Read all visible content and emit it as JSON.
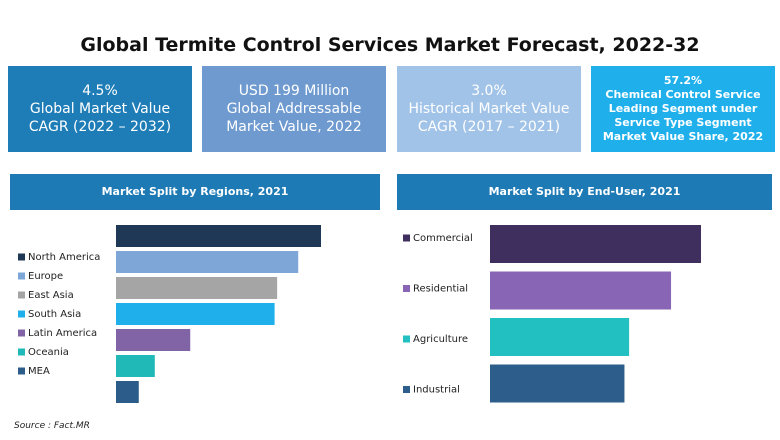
{
  "title": "Global Termite Control Services Market Forecast, 2022-32",
  "stats": [
    {
      "value": "4.5%",
      "label": "Global Market Value CAGR (2022 – 2032)"
    },
    {
      "value": "USD 199 Million",
      "label": "Global Addressable Market Value, 2022"
    },
    {
      "value": "3.0%",
      "label": "Historical Market Value CAGR (2017 – 2021)"
    },
    {
      "value": "57.2%",
      "label": "Chemical Control Service Leading Segment under Service Type Segment Market Value Share, 2022"
    }
  ],
  "chart_data": [
    {
      "type": "bar",
      "orientation": "horizontal",
      "title": "Market Split by Regions, 2021",
      "categories": [
        "North America",
        "Europe",
        "East Asia",
        "South Asia",
        "Latin America",
        "Oceania",
        "MEA"
      ],
      "values": [
        24.3,
        21.6,
        19.1,
        18.8,
        8.8,
        4.6,
        2.7
      ],
      "colors": [
        "#1e3856",
        "#7ea7d8",
        "#a5a5a5",
        "#1fb0ec",
        "#8064a6",
        "#21b8b8",
        "#2c5c8a"
      ]
    },
    {
      "type": "bar",
      "orientation": "horizontal",
      "title": "Market Split by End-User, 2021",
      "categories": [
        "Commercial",
        "Residential",
        "Agriculture",
        "Industrial"
      ],
      "values": [
        31.7,
        27.2,
        20.9,
        20.2
      ],
      "colors": [
        "#3f2f5f",
        "#8866b5",
        "#22c0c0",
        "#2d5d8a"
      ]
    }
  ],
  "source": "Source : Fact.MR"
}
